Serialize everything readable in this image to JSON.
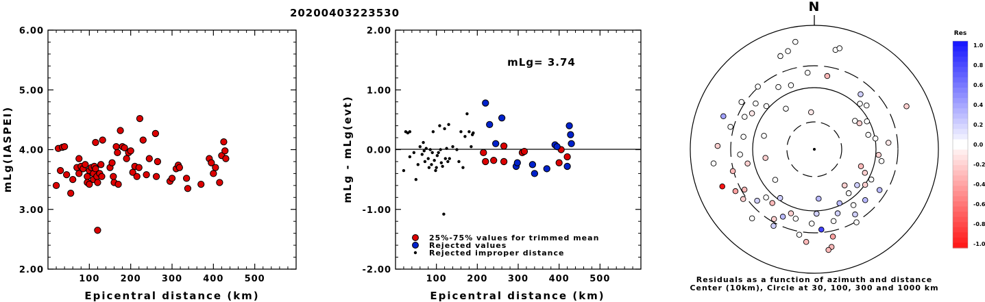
{
  "title": "20200403223530",
  "chart_data": [
    {
      "type": "scatter",
      "ylabel": "mLg(IASPEI)",
      "xlabel": "Epicentral distance (km)",
      "xlim": [
        0,
        600
      ],
      "ylim": [
        2.0,
        6.0
      ],
      "xticks": [
        "100",
        "200",
        "300",
        "400",
        "500"
      ],
      "yticks": [
        "2.00",
        "3.00",
        "4.00",
        "5.00",
        "6.00"
      ],
      "marker_color": "#dd0000",
      "points": [
        [
          20,
          3.4
        ],
        [
          25,
          4.02
        ],
        [
          30,
          3.65
        ],
        [
          35,
          4.04
        ],
        [
          40,
          4.05
        ],
        [
          45,
          3.58
        ],
        [
          55,
          3.27
        ],
        [
          60,
          3.5
        ],
        [
          70,
          3.7
        ],
        [
          75,
          3.6
        ],
        [
          75,
          3.85
        ],
        [
          80,
          3.72
        ],
        [
          85,
          3.68
        ],
        [
          90,
          3.75
        ],
        [
          95,
          3.55
        ],
        [
          95,
          3.45
        ],
        [
          100,
          3.42
        ],
        [
          100,
          3.65
        ],
        [
          105,
          3.7
        ],
        [
          110,
          3.6
        ],
        [
          110,
          3.5
        ],
        [
          112,
          3.72
        ],
        [
          115,
          3.68
        ],
        [
          115,
          4.12
        ],
        [
          118,
          3.55
        ],
        [
          120,
          3.45
        ],
        [
          120,
          2.65
        ],
        [
          125,
          3.6
        ],
        [
          128,
          3.75
        ],
        [
          130,
          3.55
        ],
        [
          132,
          4.16
        ],
        [
          150,
          3.7
        ],
        [
          155,
          3.78
        ],
        [
          158,
          3.55
        ],
        [
          160,
          3.45
        ],
        [
          165,
          4.05
        ],
        [
          168,
          3.95
        ],
        [
          170,
          3.42
        ],
        [
          175,
          4.32
        ],
        [
          180,
          4.05
        ],
        [
          185,
          4.03
        ],
        [
          190,
          3.85
        ],
        [
          195,
          3.95
        ],
        [
          200,
          3.98
        ],
        [
          205,
          3.62
        ],
        [
          210,
          3.72
        ],
        [
          215,
          3.55
        ],
        [
          220,
          3.7
        ],
        [
          222,
          4.52
        ],
        [
          230,
          4.16
        ],
        [
          238,
          3.58
        ],
        [
          245,
          3.85
        ],
        [
          260,
          4.27
        ],
        [
          262,
          3.55
        ],
        [
          265,
          3.8
        ],
        [
          295,
          3.47
        ],
        [
          300,
          3.52
        ],
        [
          310,
          3.68
        ],
        [
          315,
          3.74
        ],
        [
          318,
          3.7
        ],
        [
          335,
          3.52
        ],
        [
          338,
          3.35
        ],
        [
          370,
          3.42
        ],
        [
          390,
          3.85
        ],
        [
          395,
          3.78
        ],
        [
          400,
          3.6
        ],
        [
          405,
          3.7
        ],
        [
          415,
          3.45
        ],
        [
          420,
          3.9
        ],
        [
          425,
          4.13
        ],
        [
          428,
          3.98
        ],
        [
          430,
          3.85
        ]
      ]
    },
    {
      "type": "scatter",
      "ylabel": "mLg - mLg(evt)",
      "xlabel": "Epicentral distance (km)",
      "xlim": [
        0,
        600
      ],
      "ylim": [
        -2.0,
        2.0
      ],
      "xticks": [
        "100",
        "200",
        "300",
        "400",
        "500"
      ],
      "yticks": [
        "-2.00",
        "-1.00",
        "0.00",
        "1.00",
        "2.00"
      ],
      "annotation": "mLg= 3.74",
      "legend": [
        {
          "label": "25%-75% values for trimmed mean",
          "color": "#dd0000",
          "kind": "circle"
        },
        {
          "label": "Rejected values",
          "color": "#0022cc",
          "kind": "circle"
        },
        {
          "label": "Rejected improper distance",
          "color": "#000000",
          "kind": "dot"
        }
      ],
      "series": [
        {
          "name": "25%-75% values for trimmed mean",
          "points": [
            [
              215,
              -0.05
            ],
            [
              220,
              -0.2
            ],
            [
              240,
              -0.18
            ],
            [
              265,
              -0.2
            ],
            [
              265,
              0.06
            ],
            [
              310,
              -0.05
            ],
            [
              315,
              -0.03
            ],
            [
              400,
              -0.22
            ],
            [
              405,
              0.0
            ],
            [
              420,
              -0.12
            ]
          ]
        },
        {
          "name": "Rejected values",
          "points": [
            [
              220,
              0.78
            ],
            [
              230,
              0.42
            ],
            [
              245,
              0.1
            ],
            [
              260,
              0.53
            ],
            [
              295,
              -0.28
            ],
            [
              298,
              -0.22
            ],
            [
              335,
              -0.25
            ],
            [
              340,
              -0.4
            ],
            [
              370,
              -0.32
            ],
            [
              390,
              0.08
            ],
            [
              395,
              0.05
            ],
            [
              420,
              -0.28
            ],
            [
              425,
              0.4
            ],
            [
              428,
              0.25
            ],
            [
              430,
              0.1
            ]
          ]
        },
        {
          "name": "Rejected improper distance",
          "points": [
            [
              20,
              -0.35
            ],
            [
              25,
              0.3
            ],
            [
              30,
              0.28
            ],
            [
              35,
              0.3
            ],
            [
              35,
              -0.12
            ],
            [
              45,
              -0.05
            ],
            [
              50,
              -0.5
            ],
            [
              55,
              -0.25
            ],
            [
              60,
              0.05
            ],
            [
              65,
              -0.08
            ],
            [
              68,
              0.12
            ],
            [
              70,
              -0.02
            ],
            [
              72,
              -0.2
            ],
            [
              75,
              0.02
            ],
            [
              80,
              -0.15
            ],
            [
              82,
              -0.3
            ],
            [
              85,
              0.0
            ],
            [
              88,
              -0.25
            ],
            [
              90,
              -0.05
            ],
            [
              92,
              0.3
            ],
            [
              95,
              -0.18
            ],
            [
              98,
              -0.35
            ],
            [
              100,
              -0.3
            ],
            [
              102,
              -0.1
            ],
            [
              105,
              -0.05
            ],
            [
              108,
              0.4
            ],
            [
              110,
              0.0
            ],
            [
              112,
              -0.22
            ],
            [
              115,
              -0.28
            ],
            [
              118,
              -1.08
            ],
            [
              120,
              0.35
            ],
            [
              122,
              -0.15
            ],
            [
              125,
              0.02
            ],
            [
              128,
              -0.2
            ],
            [
              130,
              0.42
            ],
            [
              132,
              -0.15
            ],
            [
              140,
              0.05
            ],
            [
              150,
              0.0
            ],
            [
              155,
              -0.2
            ],
            [
              160,
              0.3
            ],
            [
              165,
              -0.3
            ],
            [
              170,
              0.22
            ],
            [
              175,
              0.6
            ],
            [
              180,
              0.3
            ],
            [
              185,
              0.05
            ],
            [
              188,
              0.25
            ],
            [
              190,
              0.28
            ]
          ]
        }
      ]
    },
    {
      "type": "scatter",
      "subtype": "polar-residuals",
      "north_label": "N",
      "caption_line1": "Residuals as a function of azimuth and distance",
      "caption_line2": "Center (10km), Circle at 30, 100, 300 and 1000 km",
      "colorbar": {
        "title": "Res",
        "ticks": [
          "1.0",
          "0.8",
          "0.6",
          "0.4",
          "0.2",
          "0.0",
          "-0.2",
          "-0.4",
          "-0.6",
          "-0.8",
          "-1.0"
        ],
        "max_color": "#0000ee",
        "min_color": "#ee0000"
      },
      "points": [
        [
          12,
          0.82,
          0.0
        ],
        [
          14,
          0.84,
          0.0
        ],
        [
          -20,
          0.8,
          0.0
        ],
        [
          -5,
          0.62,
          0.0
        ],
        [
          10,
          0.6,
          -0.3
        ],
        [
          40,
          0.58,
          0.2
        ],
        [
          45,
          0.52,
          0.0
        ],
        [
          50,
          0.55,
          0.0
        ],
        [
          55,
          0.4,
          0.0
        ],
        [
          60,
          0.42,
          -0.2
        ],
        [
          62,
          0.48,
          0.0
        ],
        [
          65,
          0.82,
          -0.2
        ],
        [
          75,
          0.45,
          0.0
        ],
        [
          80,
          0.5,
          0.0
        ],
        [
          85,
          0.6,
          -0.1
        ],
        [
          95,
          0.52,
          -0.2
        ],
        [
          100,
          0.55,
          0.0
        ],
        [
          110,
          0.4,
          -0.3
        ],
        [
          115,
          0.45,
          -0.2
        ],
        [
          118,
          0.52,
          0.0
        ],
        [
          122,
          0.62,
          0.3
        ],
        [
          125,
          0.5,
          -0.2
        ],
        [
          130,
          0.45,
          0.2
        ],
        [
          135,
          0.58,
          0.3
        ],
        [
          140,
          0.38,
          -0.2
        ],
        [
          142,
          0.45,
          0.0
        ],
        [
          145,
          0.55,
          0.0
        ],
        [
          148,
          0.62,
          0.2
        ],
        [
          150,
          0.68,
          0.0
        ],
        [
          155,
          0.48,
          0.3
        ],
        [
          160,
          0.55,
          0.2
        ],
        [
          165,
          0.6,
          0.0
        ],
        [
          168,
          0.72,
          -0.4
        ],
        [
          170,
          0.8,
          -0.3
        ],
        [
          172,
          0.82,
          -0.3
        ],
        [
          175,
          0.65,
          0.8
        ],
        [
          178,
          0.52,
          0.2
        ],
        [
          182,
          0.6,
          0.0
        ],
        [
          185,
          0.75,
          -0.3
        ],
        [
          190,
          0.7,
          0.0
        ],
        [
          195,
          0.58,
          0.0
        ],
        [
          200,
          0.55,
          -0.2
        ],
        [
          205,
          0.6,
          0.3
        ],
        [
          208,
          0.7,
          0.2
        ],
        [
          210,
          0.65,
          -0.2
        ],
        [
          215,
          0.48,
          0.2
        ],
        [
          218,
          0.55,
          -0.3
        ],
        [
          222,
          0.75,
          0.0
        ],
        [
          225,
          0.55,
          0.0
        ],
        [
          228,
          0.62,
          0.2
        ],
        [
          232,
          0.4,
          0.0
        ],
        [
          235,
          0.7,
          -0.2
        ],
        [
          240,
          0.65,
          -0.3
        ],
        [
          242,
          0.72,
          -0.4
        ],
        [
          248,
          0.8,
          -1.0
        ],
        [
          255,
          0.68,
          -0.3
        ],
        [
          258,
          0.55,
          -0.2
        ],
        [
          262,
          0.82,
          0.0
        ],
        [
          266,
          0.6,
          0.0
        ],
        [
          272,
          0.78,
          -0.2
        ],
        [
          280,
          0.58,
          0.0
        ],
        [
          285,
          0.7,
          0.0
        ],
        [
          290,
          0.78,
          0.4
        ],
        [
          295,
          0.62,
          0.0
        ],
        [
          300,
          0.58,
          -0.1
        ],
        [
          303,
          0.7,
          0.0
        ],
        [
          308,
          0.6,
          0.0
        ],
        [
          312,
          0.52,
          0.0
        ],
        [
          318,
          0.68,
          0.0
        ],
        [
          325,
          0.4,
          0.0
        ],
        [
          330,
          0.58,
          0.0
        ],
        [
          340,
          0.55,
          0.0
        ],
        [
          345,
          0.82,
          0.0
        ],
        [
          350,
          0.88,
          0.0
        ],
        [
          355,
          0.3,
          -0.1
        ],
        [
          175,
          0.4,
          0.3
        ],
        [
          260,
          0.4,
          -0.2
        ],
        [
          285,
          0.42,
          0.0
        ]
      ]
    }
  ]
}
